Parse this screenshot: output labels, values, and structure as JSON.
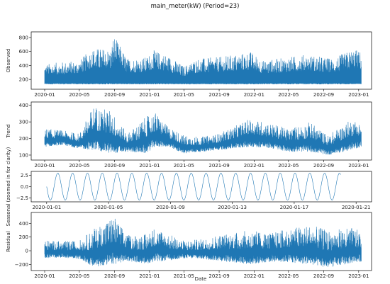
{
  "chart_data": {
    "type": "line",
    "title": "main_meter(kW) (Period=23)",
    "xlabel": "Date",
    "line_color": "#1f77b4",
    "panels": [
      {
        "name": "observed",
        "ylabel": "Observed",
        "x_range": [
          "2019-11-15",
          "2023-02-15"
        ],
        "xticks": [
          "2020-01",
          "2020-05",
          "2020-09",
          "2021-01",
          "2021-05",
          "2021-09",
          "2022-01",
          "2022-05",
          "2022-09",
          "2023-01"
        ],
        "ylim": [
          60,
          880
        ],
        "yticks": [
          200,
          400,
          600,
          800
        ],
        "baseline": 130,
        "envelope": [
          {
            "date": "2020-01-01",
            "peak": 420
          },
          {
            "date": "2020-03-01",
            "peak": 450
          },
          {
            "date": "2020-05-01",
            "peak": 470
          },
          {
            "date": "2020-06-15",
            "peak": 650
          },
          {
            "date": "2020-08-20",
            "peak": 640
          },
          {
            "date": "2020-08-28",
            "peak": 850
          },
          {
            "date": "2020-10-15",
            "peak": 500
          },
          {
            "date": "2020-12-20",
            "peak": 520
          },
          {
            "date": "2021-01-15",
            "peak": 620
          },
          {
            "date": "2021-03-01",
            "peak": 560
          },
          {
            "date": "2021-05-01",
            "peak": 390
          },
          {
            "date": "2021-06-15",
            "peak": 500
          },
          {
            "date": "2021-09-01",
            "peak": 520
          },
          {
            "date": "2021-12-20",
            "peak": 600
          },
          {
            "date": "2022-02-01",
            "peak": 470
          },
          {
            "date": "2022-05-01",
            "peak": 520
          },
          {
            "date": "2022-07-01",
            "peak": 560
          },
          {
            "date": "2022-10-01",
            "peak": 500
          },
          {
            "date": "2022-12-15",
            "peak": 640
          },
          {
            "date": "2023-01-10",
            "peak": 600
          }
        ]
      },
      {
        "name": "trend",
        "ylabel": "Trend",
        "x_range": [
          "2019-11-15",
          "2023-02-15"
        ],
        "xticks": [
          "2020-01",
          "2020-05",
          "2020-09",
          "2021-01",
          "2021-05",
          "2021-09",
          "2022-01",
          "2022-05",
          "2022-09",
          "2023-01"
        ],
        "ylim": [
          70,
          420
        ],
        "yticks": [
          100,
          200,
          300,
          400
        ],
        "envelope": [
          {
            "date": "2020-01-01",
            "peak": 260,
            "low": 150
          },
          {
            "date": "2020-03-01",
            "peak": 250,
            "low": 160
          },
          {
            "date": "2020-05-01",
            "peak": 230,
            "low": 140
          },
          {
            "date": "2020-06-20",
            "peak": 400,
            "low": 130
          },
          {
            "date": "2020-08-20",
            "peak": 370,
            "low": 110
          },
          {
            "date": "2020-10-15",
            "peak": 230,
            "low": 120
          },
          {
            "date": "2020-12-20",
            "peak": 330,
            "low": 110
          },
          {
            "date": "2021-01-20",
            "peak": 360,
            "low": 150
          },
          {
            "date": "2021-03-01",
            "peak": 280,
            "low": 150
          },
          {
            "date": "2021-05-01",
            "peak": 220,
            "low": 110
          },
          {
            "date": "2021-07-01",
            "peak": 210,
            "low": 120
          },
          {
            "date": "2021-09-01",
            "peak": 230,
            "low": 130
          },
          {
            "date": "2021-12-20",
            "peak": 320,
            "low": 150
          },
          {
            "date": "2022-03-01",
            "peak": 290,
            "low": 140
          },
          {
            "date": "2022-05-01",
            "peak": 260,
            "low": 120
          },
          {
            "date": "2022-07-15",
            "peak": 300,
            "low": 120
          },
          {
            "date": "2022-09-15",
            "peak": 220,
            "low": 100
          },
          {
            "date": "2022-12-10",
            "peak": 320,
            "low": 130
          },
          {
            "date": "2023-01-10",
            "peak": 290,
            "low": 150
          }
        ]
      },
      {
        "name": "seasonal",
        "ylabel": "Seasonal (zoomed in for clarity)",
        "x_range": [
          "2019-12-31",
          "2020-01-22"
        ],
        "xticks": [
          "2020-01-01",
          "2020-01-05",
          "2020-01-09",
          "2020-01-13",
          "2020-01-17",
          "2020-01-21"
        ],
        "ylim": [
          -3.4,
          3.4
        ],
        "yticks": [
          -2.5,
          0.0,
          2.5
        ],
        "ytick_labels": [
          "−2.5",
          "0.0",
          "2.5"
        ],
        "wave": {
          "start": "2020-01-01",
          "end": "2020-01-20",
          "period_hours": 23,
          "amplitude": 3.0
        }
      },
      {
        "name": "residual",
        "ylabel": "Residual",
        "x_range": [
          "2019-11-15",
          "2023-02-15"
        ],
        "xticks": [
          "2020-01",
          "2020-05",
          "2020-09",
          "2021-01",
          "2021-05",
          "2021-09",
          "2022-01",
          "2022-05",
          "2022-09",
          "2023-01"
        ],
        "ylim": [
          -290,
          560
        ],
        "yticks": [
          -200,
          0,
          200,
          400
        ],
        "ytick_labels": [
          "−200",
          "0",
          "200",
          "400"
        ],
        "envelope": [
          {
            "date": "2020-01-01",
            "peak": 160,
            "low": -110
          },
          {
            "date": "2020-03-01",
            "peak": 140,
            "low": -100
          },
          {
            "date": "2020-05-01",
            "peak": 150,
            "low": -120
          },
          {
            "date": "2020-06-20",
            "peak": 320,
            "low": -240
          },
          {
            "date": "2020-08-28",
            "peak": 520,
            "low": -200
          },
          {
            "date": "2020-10-15",
            "peak": 230,
            "low": -150
          },
          {
            "date": "2020-12-20",
            "peak": 250,
            "low": -190
          },
          {
            "date": "2021-01-20",
            "peak": 350,
            "low": -160
          },
          {
            "date": "2021-03-01",
            "peak": 260,
            "low": -150
          },
          {
            "date": "2021-05-01",
            "peak": 150,
            "low": -110
          },
          {
            "date": "2021-07-01",
            "peak": 170,
            "low": -120
          },
          {
            "date": "2021-09-01",
            "peak": 240,
            "low": -150
          },
          {
            "date": "2021-12-20",
            "peak": 300,
            "low": -200
          },
          {
            "date": "2022-03-01",
            "peak": 260,
            "low": -160
          },
          {
            "date": "2022-05-01",
            "peak": 330,
            "low": -170
          },
          {
            "date": "2022-07-15",
            "peak": 380,
            "low": -200
          },
          {
            "date": "2022-09-15",
            "peak": 300,
            "low": -250
          },
          {
            "date": "2022-12-10",
            "peak": 340,
            "low": -180
          },
          {
            "date": "2023-01-10",
            "peak": 280,
            "low": -160
          }
        ]
      }
    ]
  }
}
